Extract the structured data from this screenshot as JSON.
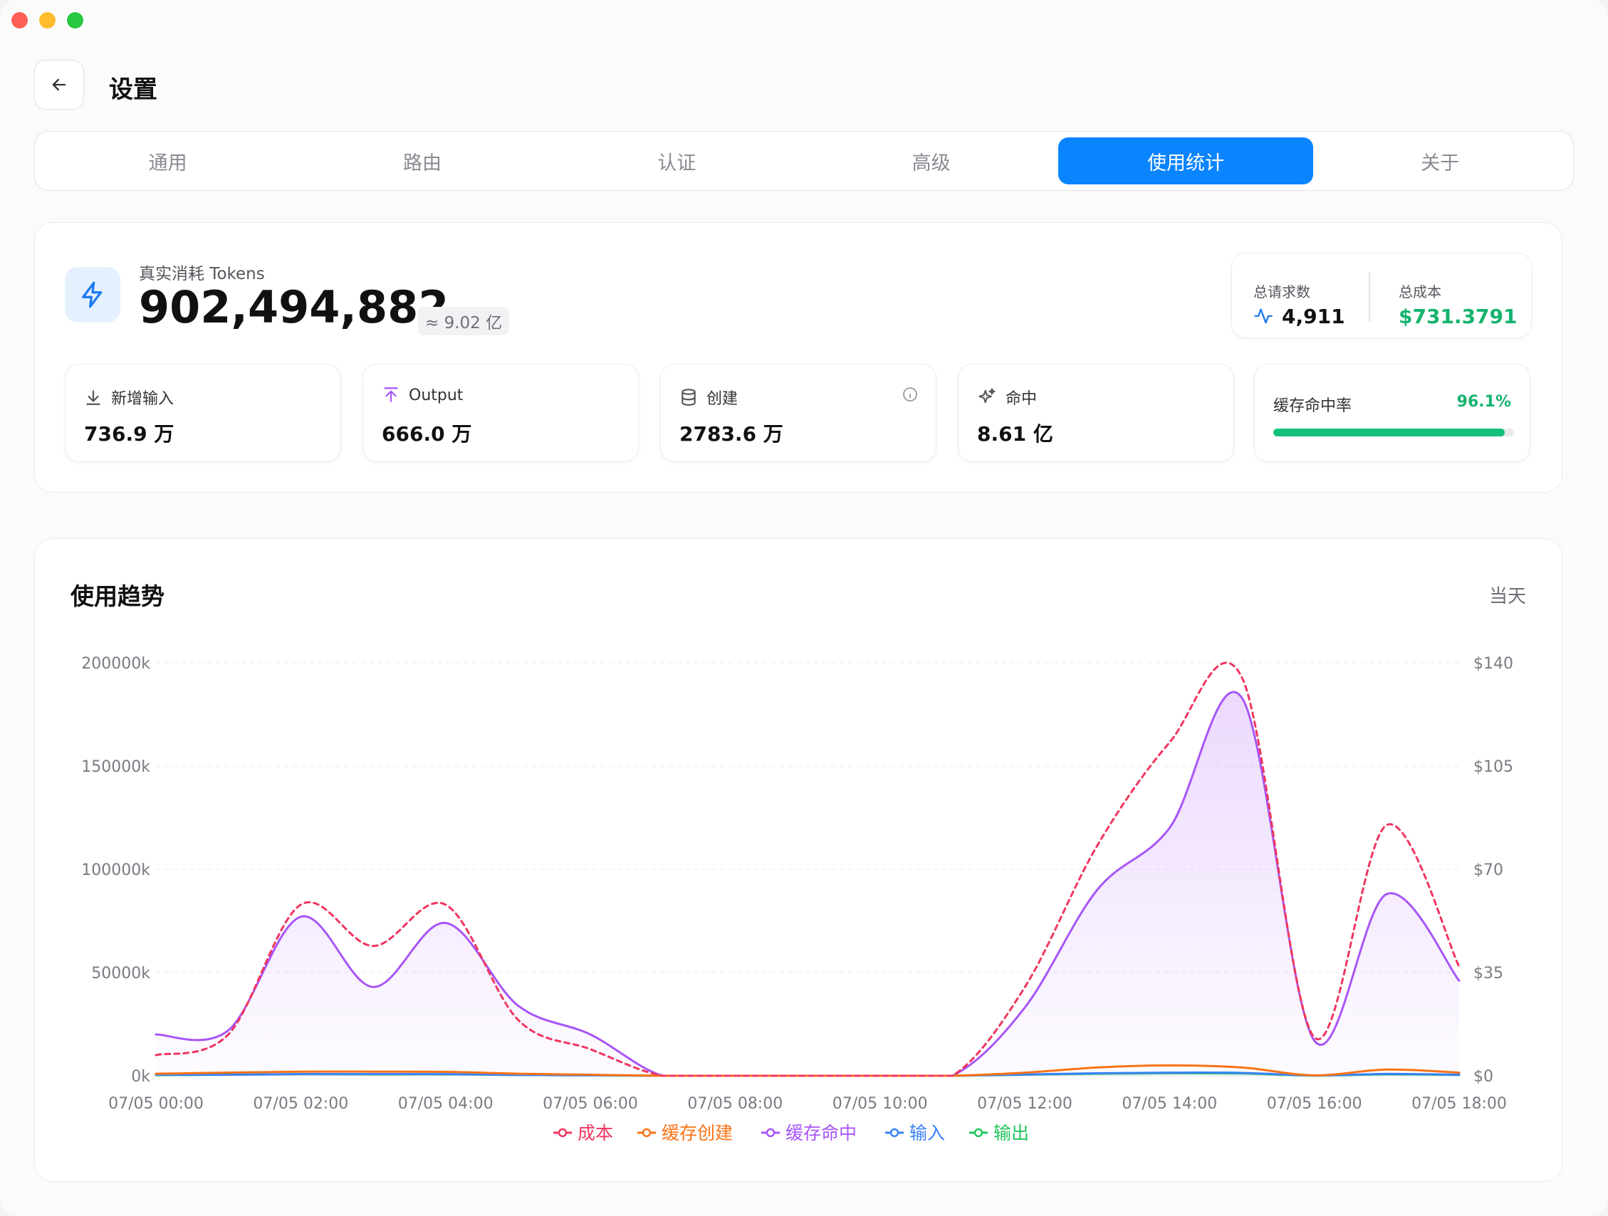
{
  "header": {
    "title": "设置"
  },
  "tabs": [
    {
      "label": "通用"
    },
    {
      "label": "路由"
    },
    {
      "label": "认证"
    },
    {
      "label": "高级"
    },
    {
      "label": "使用统计",
      "active": true
    },
    {
      "label": "关于"
    }
  ],
  "summary": {
    "tokens_label": "真实消耗 Tokens",
    "tokens_value": "902,494,882",
    "tokens_approx": "≈ 9.02 亿",
    "total_requests_label": "总请求数",
    "total_requests_value": "4,911",
    "total_cost_label": "总成本",
    "total_cost_value": "$731.3791",
    "stats": [
      {
        "label": "新增输入",
        "value": "736.9 万",
        "icon": "download-icon"
      },
      {
        "label": "Output",
        "value": "666.0 万",
        "icon": "upload-icon"
      },
      {
        "label": "创建",
        "value": "2783.6 万",
        "icon": "database-icon"
      },
      {
        "label": "命中",
        "value": "8.61 亿",
        "icon": "sparkles-icon"
      }
    ],
    "cache_rate_label": "缓存命中率",
    "cache_rate_value": "96.1%",
    "cache_rate_fraction": 0.961
  },
  "trend": {
    "title": "使用趋势",
    "range": "当天"
  },
  "colors": {
    "accent": "#0a84ff",
    "cost": "#f0365f",
    "cache_create": "#f97316",
    "cache_hit": "#a855f7",
    "input": "#3b82f6",
    "output": "#22c55e",
    "success": "#13c07a"
  },
  "chart_data": {
    "type": "line",
    "x": [
      "07/05 00:00",
      "07/05 01:00",
      "07/05 02:00",
      "07/05 03:00",
      "07/05 04:00",
      "07/05 05:00",
      "07/05 06:00",
      "07/05 07:00",
      "07/05 08:00",
      "07/05 09:00",
      "07/05 10:00",
      "07/05 11:00",
      "07/05 12:00",
      "07/05 13:00",
      "07/05 14:00",
      "07/05 15:00",
      "07/05 16:00",
      "07/05 17:00",
      "07/05 18:00"
    ],
    "xticks": [
      "07/05 00:00",
      "07/05 02:00",
      "07/05 04:00",
      "07/05 06:00",
      "07/05 08:00",
      "07/05 10:00",
      "07/05 12:00",
      "07/05 14:00",
      "07/05 16:00",
      "07/05 18:00"
    ],
    "yticks_left": [
      "0k",
      "50000k",
      "100000k",
      "150000k",
      "200000k"
    ],
    "yticks_right": [
      "$0",
      "$35",
      "$70",
      "$105",
      "$140"
    ],
    "ylim_left": [
      0,
      200000
    ],
    "ylim_right": [
      0,
      140
    ],
    "grid": true,
    "legend_position": "bottom",
    "series": [
      {
        "name": "成本",
        "axis": "right",
        "style": "dashed",
        "values": [
          7,
          14,
          58,
          44,
          58,
          19,
          9,
          0,
          0,
          0,
          0,
          0,
          30,
          78,
          113,
          135,
          13,
          85,
          37
        ]
      },
      {
        "name": "缓存创建",
        "axis": "left",
        "values": [
          1000,
          1500,
          2000,
          2000,
          1900,
          1000,
          500,
          0,
          0,
          0,
          0,
          0,
          1500,
          4000,
          5000,
          4000,
          200,
          3000,
          1500
        ]
      },
      {
        "name": "缓存命中",
        "axis": "left",
        "values": [
          20000,
          22000,
          77000,
          43000,
          74000,
          34000,
          20000,
          0,
          0,
          0,
          0,
          0,
          33000,
          90000,
          120000,
          183000,
          17000,
          88000,
          46000
        ]
      },
      {
        "name": "输入",
        "axis": "left",
        "values": [
          500,
          500,
          800,
          800,
          800,
          400,
          200,
          0,
          0,
          0,
          0,
          0,
          600,
          1200,
          1500,
          1400,
          100,
          900,
          500
        ]
      },
      {
        "name": "输出",
        "axis": "left",
        "values": [
          300,
          500,
          800,
          700,
          700,
          400,
          200,
          0,
          0,
          0,
          0,
          0,
          500,
          1000,
          1200,
          1100,
          100,
          700,
          400
        ]
      }
    ]
  }
}
